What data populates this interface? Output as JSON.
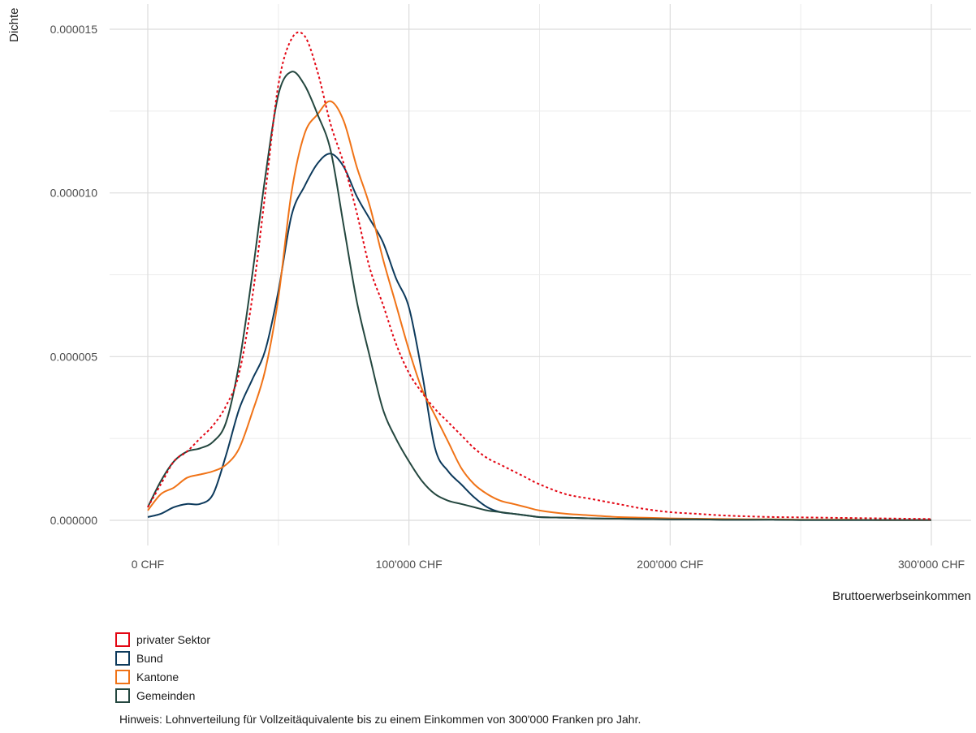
{
  "chart_data": {
    "type": "line",
    "xlabel": "Bruttoerwerbseinkommen",
    "ylabel": "Dichte",
    "xlim": [
      0,
      300000
    ],
    "ylim": [
      0,
      1.5e-05
    ],
    "x_ticks": [
      0,
      100000,
      200000,
      300000
    ],
    "x_tick_labels": [
      "0 CHF",
      "100'000 CHF",
      "200'000 CHF",
      "300'000 CHF"
    ],
    "y_ticks": [
      0,
      5e-06,
      1e-05,
      1.5e-05
    ],
    "y_tick_labels": [
      "0.000000",
      "0.000005",
      "0.000010",
      "0.000015"
    ],
    "grid": true,
    "legend_position": "bottom-left",
    "x": [
      0,
      5000,
      10000,
      15000,
      20000,
      25000,
      30000,
      35000,
      40000,
      45000,
      50000,
      55000,
      60000,
      65000,
      70000,
      75000,
      80000,
      85000,
      90000,
      95000,
      100000,
      105000,
      110000,
      115000,
      120000,
      125000,
      130000,
      135000,
      140000,
      145000,
      150000,
      160000,
      170000,
      180000,
      190000,
      200000,
      210000,
      220000,
      230000,
      240000,
      250000,
      260000,
      270000,
      280000,
      290000,
      300000
    ],
    "series": [
      {
        "name": "privater Sektor",
        "color": "#e30613",
        "dashed": true,
        "values": [
          4e-07,
          1.1e-06,
          1.8e-06,
          2.1e-06,
          2.5e-06,
          2.9e-06,
          3.5e-06,
          4.5e-06,
          6.8e-06,
          1e-05,
          1.33e-05,
          1.47e-05,
          1.48e-05,
          1.37e-05,
          1.21e-05,
          1.09e-05,
          9.4e-06,
          7.7e-06,
          6.6e-06,
          5.4e-06,
          4.5e-06,
          3.9e-06,
          3.4e-06,
          3e-06,
          2.6e-06,
          2.2e-06,
          1.9e-06,
          1.7e-06,
          1.5e-06,
          1.3e-06,
          1.1e-06,
          8e-07,
          6.5e-07,
          5e-07,
          3.5e-07,
          2.5e-07,
          2e-07,
          1.5e-07,
          1.2e-07,
          1e-07,
          9e-08,
          8e-08,
          7e-08,
          6e-08,
          5e-08,
          4e-08
        ]
      },
      {
        "name": "Bund",
        "color": "#0d3a5c",
        "dashed": false,
        "values": [
          1e-07,
          2e-07,
          4e-07,
          5e-07,
          5e-07,
          8e-07,
          2e-06,
          3.4e-06,
          4.3e-06,
          5.2e-06,
          7e-06,
          9.3e-06,
          1.02e-05,
          1.09e-05,
          1.12e-05,
          1.08e-05,
          9.9e-06,
          9.2e-06,
          8.5e-06,
          7.4e-06,
          6.5e-06,
          4.5e-06,
          2.2e-06,
          1.5e-06,
          1.1e-06,
          7e-07,
          4e-07,
          2.5e-07,
          2e-07,
          1.5e-07,
          1e-07,
          8e-08,
          6e-08,
          5e-08,
          4e-08,
          3e-08,
          3e-08,
          2e-08,
          2e-08,
          2e-08,
          1e-08,
          1e-08,
          1e-08,
          1e-08,
          1e-08,
          1e-08
        ]
      },
      {
        "name": "Kantone",
        "color": "#f07317",
        "dashed": false,
        "values": [
          3e-07,
          8e-07,
          1e-06,
          1.3e-06,
          1.4e-06,
          1.5e-06,
          1.7e-06,
          2.2e-06,
          3.3e-06,
          4.6e-06,
          6.8e-06,
          1e-05,
          1.18e-05,
          1.24e-05,
          1.28e-05,
          1.22e-05,
          1.08e-05,
          9.6e-06,
          8e-06,
          6.6e-06,
          5.2e-06,
          4e-06,
          3.2e-06,
          2.4e-06,
          1.6e-06,
          1.1e-06,
          8e-07,
          6e-07,
          5e-07,
          4e-07,
          3e-07,
          2e-07,
          1.5e-07,
          1e-07,
          8e-08,
          6e-08,
          5e-08,
          4e-08,
          3e-08,
          3e-08,
          2e-08,
          2e-08,
          2e-08,
          1e-08,
          1e-08,
          1e-08
        ]
      },
      {
        "name": "Gemeinden",
        "color": "#24473f",
        "dashed": false,
        "values": [
          4e-07,
          1.2e-06,
          1.8e-06,
          2.1e-06,
          2.2e-06,
          2.4e-06,
          3e-06,
          4.8e-06,
          7.5e-06,
          1.05e-05,
          1.3e-05,
          1.37e-05,
          1.33e-05,
          1.24e-05,
          1.13e-05,
          9e-06,
          6.7e-06,
          5e-06,
          3.4e-06,
          2.5e-06,
          1.8e-06,
          1.2e-06,
          8e-07,
          6e-07,
          5e-07,
          4e-07,
          3e-07,
          2.5e-07,
          2e-07,
          1.5e-07,
          1e-07,
          8e-08,
          6e-08,
          5e-08,
          4e-08,
          3e-08,
          3e-08,
          2e-08,
          2e-08,
          2e-08,
          1e-08,
          1e-08,
          1e-08,
          1e-08,
          1e-08,
          1e-08
        ]
      }
    ],
    "note": "Hinweis: Lohnverteilung für Vollzeitäquivalente bis zu einem Einkommen von 300'000 Franken pro Jahr."
  }
}
